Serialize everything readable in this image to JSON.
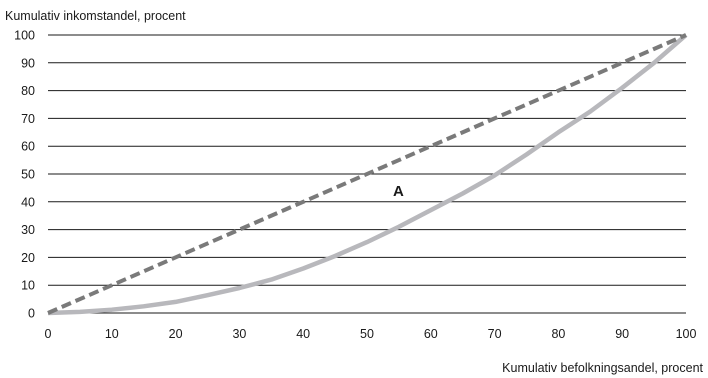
{
  "chart_data": {
    "type": "line",
    "title": "",
    "ylabel": "Kumulativ inkomstandel, procent",
    "xlabel": "Kumulativ befolkningsandel, procent",
    "xlim": [
      0,
      100
    ],
    "ylim": [
      0,
      100
    ],
    "x_ticks": [
      "0",
      "10",
      "20",
      "30",
      "40",
      "50",
      "60",
      "70",
      "80",
      "90",
      "100"
    ],
    "y_ticks": [
      "0",
      "10",
      "20",
      "30",
      "40",
      "50",
      "60",
      "70",
      "80",
      "90",
      "100"
    ],
    "grid": "horizontal",
    "legend": "none",
    "annotation": "A",
    "series": [
      {
        "style": "dashed",
        "color": "#7a7a7a",
        "x": [
          0,
          100
        ],
        "y": [
          0,
          100
        ]
      },
      {
        "style": "solid",
        "color": "#b8b8bc",
        "x": [
          0,
          5,
          10,
          15,
          20,
          25,
          30,
          35,
          40,
          45,
          50,
          55,
          60,
          65,
          70,
          75,
          80,
          85,
          90,
          95,
          100
        ],
        "y": [
          0,
          0.4,
          1.2,
          2.4,
          4,
          6.4,
          9,
          12,
          16,
          20.5,
          25.5,
          31,
          37,
          43,
          49.5,
          57,
          65,
          72.5,
          81,
          90,
          100
        ]
      }
    ]
  }
}
